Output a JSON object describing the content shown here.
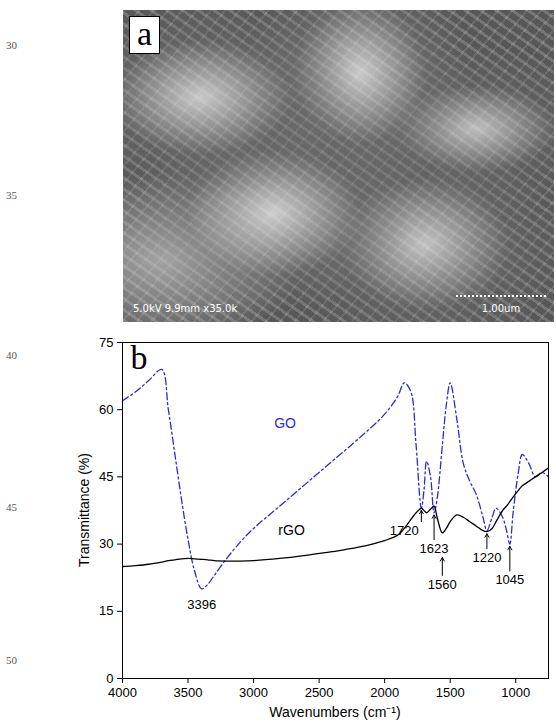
{
  "line_numbers": [
    30,
    35,
    40,
    45,
    50
  ],
  "panel_a": {
    "panel_label": "a",
    "info": "5.0kV 9.9mm x35.0k",
    "scale_bar": "1.00um"
  },
  "chart_data": {
    "type": "line",
    "panel_label": "b",
    "x_label": "Wavenumbers (cm⁻¹)",
    "y_label": "Transmittance (%)",
    "xlim": [
      4000,
      750
    ],
    "xticks": [
      4000,
      3500,
      3000,
      2500,
      2000,
      1500,
      1000
    ],
    "ylim": [
      0,
      75
    ],
    "yticks": [
      0,
      15,
      30,
      45,
      60,
      75
    ],
    "grid": false,
    "x": [
      4000,
      3900,
      3800,
      3700,
      3650,
      3600,
      3550,
      3500,
      3450,
      3396,
      3350,
      3300,
      3200,
      3100,
      3000,
      2800,
      2600,
      2400,
      2200,
      2000,
      1900,
      1850,
      1800,
      1760,
      1720,
      1700,
      1680,
      1650,
      1623,
      1600,
      1560,
      1530,
      1500,
      1450,
      1400,
      1350,
      1300,
      1250,
      1220,
      1180,
      1150,
      1100,
      1070,
      1045,
      1020,
      980,
      950,
      900,
      850,
      800,
      750
    ],
    "series": [
      {
        "name": "GO",
        "color": "#2b2bd6",
        "line_style": "dashdot",
        "label_at": [
          2760,
          57
        ],
        "values": [
          62,
          64,
          66.5,
          69,
          60,
          50,
          40,
          31,
          24,
          20,
          21,
          23,
          27,
          30.5,
          33.5,
          38.5,
          43.5,
          48.5,
          53.5,
          59,
          63,
          66,
          64,
          52,
          38,
          42,
          48.5,
          45,
          37,
          40,
          52,
          61,
          66,
          58,
          48,
          44,
          41,
          36,
          33,
          36,
          38,
          36,
          33,
          30,
          37,
          46,
          50,
          48,
          45,
          46,
          45
        ]
      },
      {
        "name": "rGO",
        "color": "#000000",
        "line_style": "solid",
        "label_at": [
          2710,
          33
        ],
        "values": [
          25,
          25.2,
          25.5,
          26,
          26.3,
          26.5,
          26.7,
          26.8,
          26.7,
          26.6,
          26.5,
          26.3,
          26.2,
          26.2,
          26.3,
          26.8,
          27.5,
          28.3,
          29.3,
          30.8,
          32,
          33.5,
          35.5,
          37,
          38,
          37.5,
          37,
          37.8,
          38.5,
          36,
          32.5,
          33.5,
          35,
          36.5,
          36,
          35,
          34,
          33,
          32.8,
          33.5,
          35,
          37.5,
          38.5,
          39.5,
          40.5,
          42,
          43,
          44,
          45,
          46,
          47
        ]
      }
    ],
    "annotations": [
      {
        "text": "3396",
        "x": 3396,
        "y": 16.5
      },
      {
        "text": "1720",
        "x": 1720,
        "text_x": 1850,
        "y": 33,
        "arrow": [
          35,
          37.5
        ]
      },
      {
        "text": "1623",
        "x": 1623,
        "y": 29,
        "arrow": [
          31,
          36.5
        ]
      },
      {
        "text": "1560",
        "x": 1560,
        "y": 21,
        "arrow": [
          23,
          27
        ]
      },
      {
        "text": "1220",
        "x": 1220,
        "y": 27,
        "arrow": [
          29,
          32.3
        ]
      },
      {
        "text": "1045",
        "x": 1045,
        "y": 22,
        "arrow": [
          24,
          29.5
        ]
      }
    ]
  }
}
